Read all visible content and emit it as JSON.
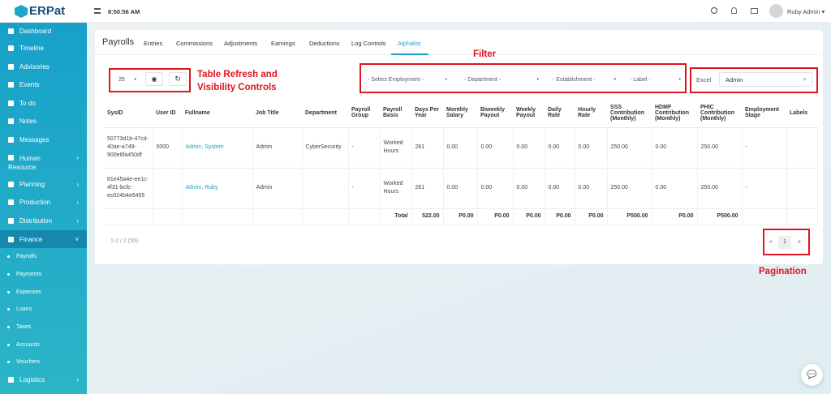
{
  "header": {
    "logo": "ERPat",
    "time": "8:50:56 AM",
    "user": "Ruby Admin"
  },
  "sidebar": {
    "menu": [
      "Dashboard",
      "Timeline",
      "Advisories",
      "Events",
      "To do",
      "Notes",
      "Messages",
      "Human Resource",
      "Planning",
      "Production",
      "Distribution",
      "Finance"
    ],
    "finance_menu": [
      "Payrolls",
      "Payments",
      "Expenses",
      "Loans",
      "Taxes",
      "Accounts",
      "Vouchers"
    ],
    "menu_bottom": [
      "Logistics"
    ]
  },
  "tabs": {
    "title": "Payrolls",
    "items": [
      "Entries",
      "Commissions",
      "Adjustments",
      "Earnings",
      "Deductions",
      "Log Controls",
      "Alphalist"
    ],
    "active": "Alphalist"
  },
  "controls": {
    "page_size": "25",
    "filters": [
      "- Select Employment -",
      "- Department -",
      "- Establishment -",
      "- Label -"
    ],
    "export": "Excel",
    "search": "Admin"
  },
  "annotations": {
    "table_controls": "Table Refresh and Visibility Controls",
    "filter": "Filter",
    "pagination": "Pagination"
  },
  "table": {
    "columns": [
      "SysID",
      "User ID",
      "Fullname",
      "Job Title",
      "Department",
      "Payroll Group",
      "Payroll Basis",
      "Days Per Year",
      "Monthly Salary",
      "Biweekly Payout",
      "Weekly Payout",
      "Daily Rate",
      "Hourly Rate",
      "SSS Contribution (Monthly)",
      "HDMF Contribution (Monthly)",
      "PHIC Contribution (Monthly)",
      "Employment Stage",
      "Labels"
    ],
    "rows": [
      [
        "50773d1b-47cd-40ae-a749-900e6fa450df",
        "0000",
        "Admin, System",
        "Admin",
        "CyberSecurity",
        "-",
        "Worked Hours",
        "261",
        "0.00",
        "0.00",
        "0.00",
        "0.00",
        "0.00",
        "250.00",
        "0.00",
        "250.00",
        "-",
        null
      ],
      [
        "81e45a4e-ee1c-4f31-bcfc-ec024b4e6455",
        null,
        "Admin, Ruby",
        "Admin",
        null,
        "-",
        "Worked Hours",
        "261",
        "0.00",
        "0.00",
        "0.00",
        "0.00",
        "0.00",
        "250.00",
        "0.00",
        "250.00",
        "-",
        null
      ]
    ],
    "totals": [
      null,
      null,
      null,
      null,
      null,
      null,
      "Total",
      "522.00",
      "P0.00",
      "P0.00",
      "P0.00",
      "P0.00",
      "P0.00",
      "P500.00",
      "P0.00",
      "P500.00",
      null,
      null
    ]
  },
  "footer": {
    "summary": "1-2 / 2 (55)",
    "pages": [
      "«",
      "1",
      "»"
    ]
  }
}
